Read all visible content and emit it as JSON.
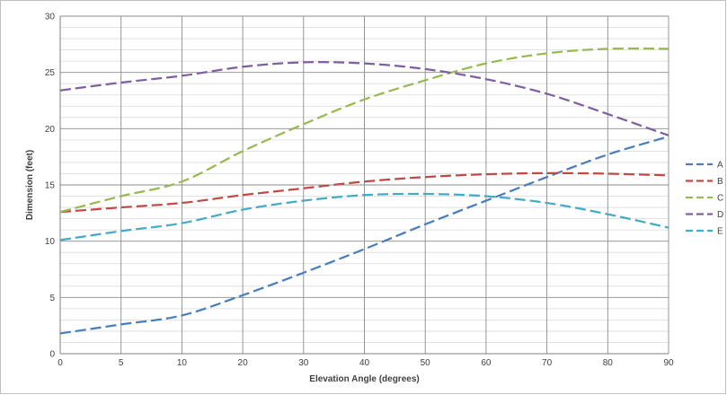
{
  "chart_data": {
    "type": "line",
    "title": "",
    "xlabel": "Elevation Angle (degrees)",
    "ylabel": "Dimension (feet)",
    "xlim": [
      0,
      90
    ],
    "ylim": [
      0,
      30
    ],
    "x_major_ticks": [
      0,
      5,
      10,
      20,
      30,
      40,
      50,
      60,
      70,
      80,
      90
    ],
    "y_major_ticks": [
      0,
      5,
      10,
      15,
      20,
      25,
      30
    ],
    "y_minor_step": 1,
    "grid": true,
    "legend_position": "right",
    "x": [
      0,
      5,
      10,
      20,
      30,
      40,
      50,
      60,
      70,
      80,
      90
    ],
    "series": [
      {
        "name": "A",
        "color": "#4a7ebb",
        "values": [
          1.8,
          2.6,
          3.4,
          5.2,
          7.2,
          9.3,
          11.5,
          13.6,
          15.7,
          17.7,
          19.3
        ]
      },
      {
        "name": "B",
        "color": "#be4b48",
        "values": [
          12.6,
          13.0,
          13.4,
          14.1,
          14.7,
          15.3,
          15.7,
          15.95,
          16.05,
          16.0,
          15.85
        ]
      },
      {
        "name": "C",
        "color": "#98b954",
        "values": [
          12.6,
          14.0,
          15.3,
          18.0,
          20.4,
          22.6,
          24.3,
          25.8,
          26.7,
          27.1,
          27.1
        ]
      },
      {
        "name": "D",
        "color": "#7d60a0",
        "values": [
          23.4,
          24.1,
          24.7,
          25.5,
          25.9,
          25.8,
          25.3,
          24.4,
          23.1,
          21.3,
          19.4
        ]
      },
      {
        "name": "E",
        "color": "#46aac5",
        "values": [
          10.1,
          10.9,
          11.6,
          12.8,
          13.6,
          14.1,
          14.2,
          14.0,
          13.4,
          12.4,
          11.2
        ]
      }
    ]
  }
}
